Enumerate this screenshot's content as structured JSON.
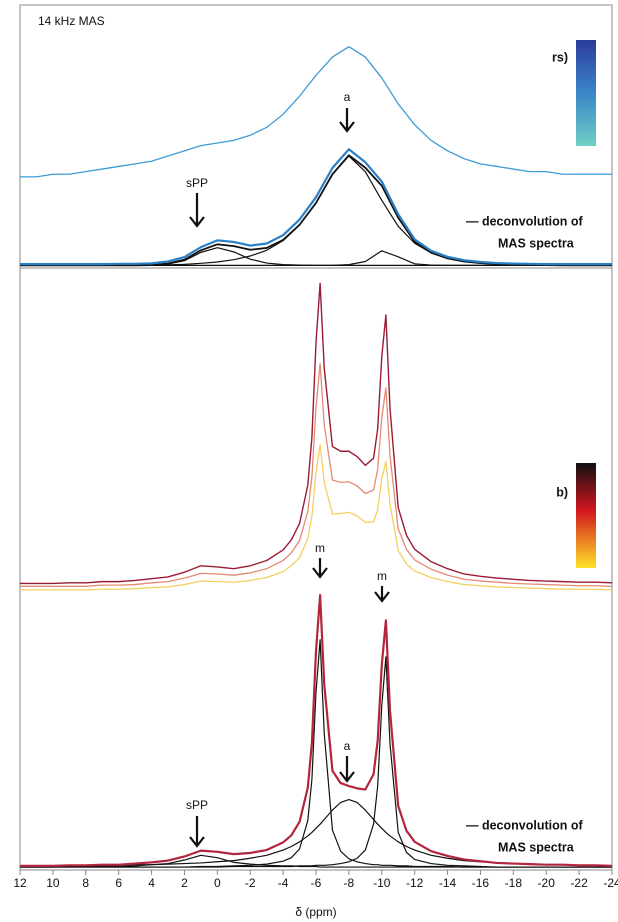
{
  "chart_data": [
    {
      "type": "line",
      "annotations": [
        "14 kHz MAS",
        "rs)",
        "a",
        "sPP",
        "— deconvolution of",
        "MAS spectra"
      ],
      "xlim": [
        12,
        -24
      ],
      "ylim": [
        -1,
        100
      ],
      "x": [
        12,
        11,
        10,
        9,
        8,
        7,
        6,
        5,
        4,
        3,
        2,
        1,
        0,
        -1,
        -2,
        -3,
        -4,
        -5,
        -6,
        -7,
        -8,
        -9,
        -10,
        -11,
        -12,
        -13,
        -14,
        -15,
        -16,
        -17,
        -18,
        -19,
        -20,
        -21,
        -22,
        -23,
        -24
      ],
      "series": [
        {
          "color": "#3f9bd6",
          "width": 1.3,
          "values": [
            34,
            34,
            35,
            35,
            36,
            37,
            38,
            39,
            40,
            42,
            44,
            46,
            47,
            48,
            50,
            53,
            58,
            65,
            73,
            80,
            84,
            80,
            72,
            62,
            54,
            48,
            44,
            41,
            39,
            38,
            37,
            36,
            36,
            35,
            35,
            35,
            35
          ]
        },
        {
          "color": "#111111",
          "width": 1.2,
          "values": [
            0,
            0,
            0,
            0,
            0,
            0,
            0,
            0,
            0.1,
            0.2,
            0.4,
            0.8,
            1.3,
            2.2,
            3.6,
            5.8,
            9.5,
            15.5,
            24,
            35,
            42,
            36,
            25,
            15,
            8.5,
            4.8,
            2.7,
            1.5,
            0.9,
            0.5,
            0.3,
            0.2,
            0.1,
            0,
            0,
            0,
            0
          ]
        },
        {
          "color": "#111111",
          "width": 1.2,
          "values": [
            0,
            0,
            0,
            0,
            0,
            0,
            0,
            0,
            0,
            0.5,
            1.8,
            5.0,
            6.8,
            5.2,
            2.4,
            0.9,
            0.3,
            0.1,
            0,
            0,
            0,
            0,
            0,
            0,
            0,
            0,
            0,
            0,
            0,
            0,
            0,
            0,
            0,
            0,
            0,
            0,
            0
          ]
        },
        {
          "color": "#111111",
          "width": 1.2,
          "values": [
            0,
            0,
            0,
            0,
            0,
            0,
            0,
            0,
            0,
            0,
            0,
            0,
            0,
            0,
            0,
            0,
            0,
            0,
            0,
            0,
            0.3,
            1.5,
            5.6,
            3.3,
            0.6,
            0.1,
            0,
            0,
            0,
            0,
            0,
            0,
            0,
            0,
            0,
            0,
            0
          ]
        },
        {
          "color": "#111111",
          "width": 1.8,
          "values": [
            0,
            0,
            0,
            0,
            0,
            0,
            0,
            0,
            0.1,
            0.7,
            2.2,
            5.8,
            8.1,
            7.4,
            6.0,
            6.7,
            9.8,
            15.6,
            24,
            35,
            42.3,
            37.5,
            30.6,
            18.3,
            9.1,
            4.9,
            2.7,
            1.5,
            0.9,
            0.5,
            0.3,
            0.2,
            0.1,
            0,
            0,
            0,
            0
          ]
        },
        {
          "color": "#2a80c6",
          "width": 2.2,
          "values": [
            0.5,
            0.5,
            0.5,
            0.5,
            0.5,
            0.5,
            0.6,
            0.6,
            0.8,
            1.5,
            3.2,
            7.0,
            9.6,
            9.0,
            7.6,
            8.4,
            11.6,
            17.6,
            26.2,
            37.4,
            44.6,
            39.6,
            32.2,
            19.6,
            10.0,
            5.6,
            3.3,
            2.0,
            1.3,
            0.9,
            0.7,
            0.6,
            0.5,
            0.5,
            0.5,
            0.5,
            0.5
          ]
        }
      ]
    },
    {
      "type": "line",
      "annotations": [
        "b)",
        "m",
        "m",
        "a",
        "sPP",
        "— deconvolution of",
        "MAS spectra"
      ],
      "x_label": "δ (ppm)",
      "xlim": [
        12,
        -24
      ],
      "ylim": [
        -0.5,
        102
      ],
      "xticks": [
        12,
        10,
        8,
        6,
        4,
        2,
        0,
        -2,
        -4,
        -6,
        -8,
        -10,
        -12,
        -14,
        -16,
        -18,
        -20,
        -22,
        -24
      ],
      "x": [
        12,
        11,
        10,
        9,
        8,
        7,
        6,
        5,
        4,
        3,
        2,
        1,
        0,
        -1,
        -2,
        -3,
        -4,
        -4.5,
        -5,
        -5.5,
        -5.75,
        -6,
        -6.25,
        -6.5,
        -7,
        -7.5,
        -8,
        -8.5,
        -9,
        -9.5,
        -9.75,
        -10,
        -10.25,
        -10.5,
        -11,
        -11.5,
        -12,
        -13,
        -14,
        -15,
        -16,
        -17,
        -18,
        -19,
        -20,
        -21,
        -22,
        -23,
        -24
      ],
      "series": [
        {
          "color": "#f3d060",
          "width": 1.3,
          "values": [
            47.2,
            47.2,
            47.2,
            47.2,
            47.2,
            47.3,
            47.3,
            47.4,
            47.6,
            47.7,
            48.1,
            48.7,
            48.6,
            48.5,
            48.8,
            49.3,
            50.3,
            51.3,
            52.7,
            55.9,
            59.7,
            67.2,
            71.9,
            65.6,
            60.1,
            60.2,
            60.4,
            59.8,
            58.7,
            58.8,
            60.8,
            66.1,
            69.1,
            61.8,
            53.9,
            51.6,
            50.4,
            49.3,
            48.6,
            48.1,
            47.9,
            47.7,
            47.6,
            47.5,
            47.4,
            47.3,
            47.3,
            47.3,
            47.2
          ]
        },
        {
          "color": "#e38a76",
          "width": 1.3,
          "values": [
            47.8,
            47.8,
            47.8,
            47.8,
            47.8,
            48.0,
            48.0,
            48.1,
            48.4,
            48.6,
            49.2,
            50.0,
            49.9,
            49.7,
            50.1,
            50.8,
            52.2,
            53.5,
            55.6,
            60.5,
            66.4,
            78.3,
            85.7,
            75.3,
            65.9,
            65.5,
            65.6,
            64.9,
            63.6,
            64.2,
            67.7,
            76.5,
            81.6,
            70.0,
            57.6,
            54.1,
            52.3,
            50.7,
            49.7,
            49.0,
            48.7,
            48.5,
            48.3,
            48.2,
            48.1,
            48.0,
            47.9,
            47.9,
            47.8
          ]
        },
        {
          "color": "#9b1b35",
          "width": 1.4,
          "values": [
            48.3,
            48.3,
            48.3,
            48.4,
            48.4,
            48.6,
            48.6,
            48.8,
            49.1,
            49.4,
            50.2,
            51.3,
            51.1,
            50.8,
            51.3,
            52.2,
            54.0,
            55.7,
            58.5,
            65.0,
            73.1,
            89.3,
            99.4,
            85.0,
            71.6,
            70.8,
            70.8,
            69.9,
            68.4,
            69.6,
            74.6,
            86.9,
            94.0,
            78.1,
            61.2,
            56.5,
            54.1,
            52.0,
            50.8,
            49.9,
            49.5,
            49.2,
            49.0,
            48.8,
            48.7,
            48.6,
            48.5,
            48.5,
            48.4
          ]
        },
        {
          "color": "#111111",
          "width": 1.2,
          "values": [
            0,
            0,
            0,
            0,
            0,
            0,
            0,
            0,
            0,
            0,
            0,
            0.1,
            0.1,
            0.2,
            0.3,
            0.5,
            1.0,
            1.6,
            3.1,
            7.9,
            14.9,
            29.8,
            38.7,
            22.8,
            6.3,
            2.7,
            1.4,
            0.9,
            0.6,
            0.4,
            0.4,
            0.3,
            0.3,
            0.3,
            0.2,
            0.2,
            0.1,
            0.1,
            0.1,
            0,
            0,
            0,
            0,
            0,
            0,
            0,
            0,
            0,
            0
          ]
        },
        {
          "color": "#111111",
          "width": 1.2,
          "values": [
            0,
            0,
            0,
            0,
            0,
            0,
            0,
            0,
            0,
            0,
            0,
            0,
            0,
            0.1,
            0.1,
            0.1,
            0.1,
            0.1,
            0.2,
            0.2,
            0.2,
            0.3,
            0.3,
            0.3,
            0.4,
            0.6,
            0.9,
            1.5,
            2.9,
            7.3,
            13.8,
            27.5,
            35.8,
            21.0,
            5.9,
            2.5,
            1.3,
            0.6,
            0.3,
            0.2,
            0.1,
            0,
            0,
            0,
            0,
            0,
            0,
            0,
            0
          ]
        },
        {
          "color": "#111111",
          "width": 1.2,
          "values": [
            0.2,
            0.2,
            0.2,
            0.2,
            0.2,
            0.3,
            0.3,
            0.4,
            0.4,
            0.5,
            0.6,
            0.7,
            0.9,
            1.1,
            1.5,
            2.0,
            2.9,
            3.5,
            4.3,
            5.3,
            5.9,
            6.6,
            7.3,
            8.1,
            9.7,
            11.0,
            11.5,
            11.0,
            9.7,
            8.1,
            7.3,
            6.6,
            5.9,
            5.3,
            4.3,
            3.5,
            2.9,
            2.0,
            1.5,
            1.1,
            0.9,
            0.7,
            0.6,
            0.5,
            0.4,
            0.4,
            0.3,
            0.3,
            0.2
          ]
        },
        {
          "color": "#111111",
          "width": 1.2,
          "values": [
            0,
            0,
            0,
            0.1,
            0.1,
            0.1,
            0.1,
            0.2,
            0.4,
            0.6,
            1.2,
            2.0,
            1.6,
            0.8,
            0.5,
            0.3,
            0.2,
            0.2,
            0.1,
            0.1,
            0.1,
            0.1,
            0,
            0,
            0,
            0,
            0,
            0,
            0,
            0,
            0,
            0,
            0,
            0,
            0,
            0,
            0,
            0,
            0,
            0,
            0,
            0,
            0,
            0,
            0,
            0,
            0,
            0,
            0
          ]
        },
        {
          "color": "#b3243d",
          "width": 2.2,
          "values": [
            0.2,
            0.2,
            0.2,
            0.3,
            0.3,
            0.4,
            0.4,
            0.6,
            0.8,
            1.1,
            1.8,
            2.8,
            2.6,
            2.2,
            2.4,
            2.9,
            4.2,
            5.4,
            7.7,
            13.5,
            21.1,
            36.8,
            46.3,
            31.2,
            16.4,
            14.3,
            13.8,
            13.4,
            13.2,
            15.8,
            21.5,
            34.4,
            42.0,
            26.6,
            10.4,
            6.2,
            4.3,
            2.7,
            1.9,
            1.3,
            1.0,
            0.7,
            0.6,
            0.5,
            0.4,
            0.4,
            0.3,
            0.3,
            0.2
          ]
        }
      ]
    }
  ]
}
